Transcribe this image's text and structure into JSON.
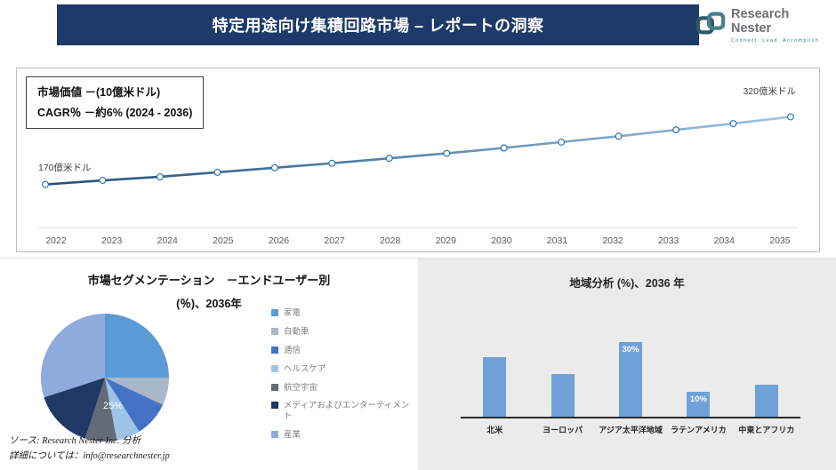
{
  "header": {
    "title": "特定用途向け集積回路市場 – レポートの洞察",
    "brand": "Research Nester",
    "tagline": "Connect. Lead. Accomplish."
  },
  "info_box": {
    "line1": "市場価値 －(10億米ドル)",
    "line2": "CAGR％ －約6% (2024 - 2036)"
  },
  "segmentation": {
    "title_line1": "市場セグメンテーション　－エンドユーザー別",
    "title_line2": "(％)、2036年"
  },
  "region": {
    "title": "地域分析 (%)、2036 年"
  },
  "footer": {
    "source": "ソース: Research Nester Inc. 分析",
    "contact": "詳細については：info@researchnester.jp"
  },
  "colors": {
    "header_navy": "#1e3a68",
    "bar_blue": "#6fa1d9",
    "line_gradient_from": "#1f4e79",
    "line_gradient_to": "#9dc3e6",
    "marker_stroke": "#2e75b6"
  },
  "chart_data": [
    {
      "type": "line",
      "title": "市場価値 －(10億米ドル)",
      "x": [
        2022,
        2023,
        2024,
        2025,
        2026,
        2027,
        2028,
        2029,
        2030,
        2031,
        2032,
        2033,
        2034,
        2035
      ],
      "values": [
        17,
        17.9,
        18.7,
        19.7,
        20.7,
        21.7,
        22.8,
        23.9,
        25.1,
        26.4,
        27.7,
        29.1,
        30.5,
        32
      ],
      "ylim": [
        12,
        38
      ],
      "start_label": "170億米ドル",
      "end_label": "320億米ドル",
      "ylabel": "10億米ドル",
      "cagr": "約6% (2024 - 2036)"
    },
    {
      "type": "pie",
      "title": "市場セグメンテーション －エンドユーザー別 (％)、2036年",
      "labels": [
        "家電",
        "自動車",
        "通信",
        "ヘルスケア",
        "航空宇宙",
        "メディアおよびエンターティメント",
        "産業"
      ],
      "values": [
        25,
        7,
        9,
        6,
        8,
        15,
        30
      ],
      "colors": [
        "#5b9bd5",
        "#a9b8c9",
        "#4472c4",
        "#9dc3e6",
        "#636b77",
        "#1f3864",
        "#8faadc"
      ],
      "annotation": "25%"
    },
    {
      "type": "bar",
      "title": "地域分析 (%)、2036 年",
      "categories": [
        "北米",
        "ヨーロッパ",
        "アジア太平洋地域",
        "ラテンアメリカ",
        "中東とアフリカ"
      ],
      "values": [
        24,
        17,
        30,
        10,
        13
      ],
      "bar_labels": [
        "",
        "",
        "30%",
        "10%",
        ""
      ],
      "color": "#6fa1d9",
      "ylim": [
        0,
        35
      ]
    }
  ]
}
